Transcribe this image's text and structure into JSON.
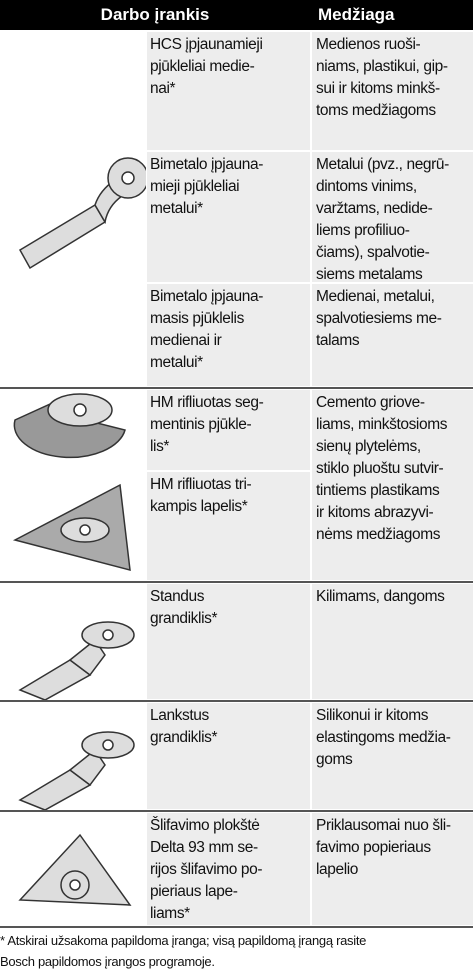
{
  "header": {
    "tool": "Darbo įrankis",
    "material": "Medžiaga"
  },
  "rows": [
    {
      "tool": [
        "HCS įpjaunamieji",
        "pjūkleliai medie-",
        "nai*"
      ],
      "material": [
        "Medienos ruoši-",
        "niams, plastikui, gip-",
        "sui ir kitoms minkš-",
        "toms medžiagoms"
      ]
    },
    {
      "tool": [
        "Bimetalo įpjauna-",
        "mieji pjūkleliai",
        "metalui*"
      ],
      "material": [
        "Metalui (pvz., negrū-",
        "dintoms vinims,",
        "varžtams, nedide-",
        "liems profiliuo-",
        "čiams), spalvotie-",
        "siems metalams"
      ]
    },
    {
      "tool": [
        "Bimetalo įpjauna-",
        "masis pjūklelis",
        "medienai ir",
        "metalui*"
      ],
      "material": [
        "Medienai, metalui,",
        "spalvotiesiems me-",
        "talams"
      ]
    },
    {
      "tool": [
        "HM rifliuotas seg-",
        "mentinis pjūkle-",
        "lis*"
      ],
      "material": [
        "Cemento griove-",
        "liams, minkštosioms",
        "sienų plytelėms,",
        "stiklo pluoštu sutvir-",
        "tintiems plastikams",
        "ir kitoms abrazyvi-",
        "nėms medžiagoms"
      ]
    },
    {
      "tool": [
        "HM rifliuotas tri-",
        "kampis lapelis*"
      ]
    },
    {
      "tool": [
        "Standus",
        "grandiklis*"
      ],
      "material": [
        "Kilimams, dangoms"
      ]
    },
    {
      "tool": [
        "Lankstus",
        "grandiklis*"
      ],
      "material": [
        "Silikonui ir kitoms",
        "elastingoms medžia-",
        "goms"
      ]
    },
    {
      "tool": [
        "Šlifavimo plokštė",
        "Delta 93 mm se-",
        "rijos šlifavimo po-",
        "pieriaus lape-",
        "liams*"
      ],
      "material": [
        "Priklausomai nuo šli-",
        "favimo popieriaus",
        "lapelio"
      ]
    }
  ],
  "footnote": [
    "* Atskirai užsakoma papildoma įranga; visą papildomą įrangą rasite",
    "Bosch papildomos įrangos programoje."
  ]
}
